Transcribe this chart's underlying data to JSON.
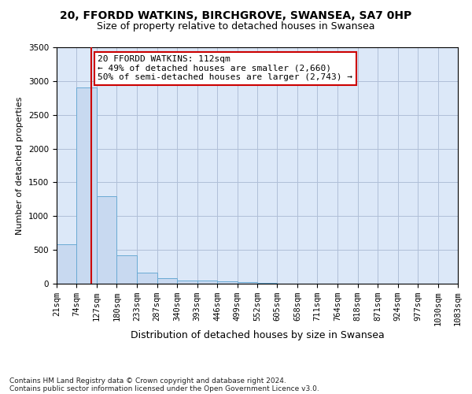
{
  "title1": "20, FFORDD WATKINS, BIRCHGROVE, SWANSEA, SA7 0HP",
  "title2": "Size of property relative to detached houses in Swansea",
  "xlabel": "Distribution of detached houses by size in Swansea",
  "ylabel": "Number of detached properties",
  "footnote1": "Contains HM Land Registry data © Crown copyright and database right 2024.",
  "footnote2": "Contains public sector information licensed under the Open Government Licence v3.0.",
  "annotation_line1": "20 FFORDD WATKINS: 112sqm",
  "annotation_line2": "← 49% of detached houses are smaller (2,660)",
  "annotation_line3": "50% of semi-detached houses are larger (2,743) →",
  "bar_edges": [
    21,
    74,
    127,
    180,
    233,
    287,
    340,
    393,
    446,
    499,
    552,
    605,
    658,
    711,
    764,
    818,
    871,
    924,
    977,
    1030,
    1083
  ],
  "bar_heights": [
    580,
    2900,
    1300,
    420,
    160,
    80,
    50,
    45,
    35,
    20,
    10,
    5,
    3,
    2,
    2,
    1,
    1,
    1,
    1,
    1
  ],
  "bar_color": "#c8d9f0",
  "bar_edge_color": "#6aaad4",
  "property_size": 112,
  "vline_color": "#cc0000",
  "ylim": [
    0,
    3500
  ],
  "xlim_min": 21,
  "xlim_max": 1083,
  "grid_color": "#b0bfd8",
  "background_color": "#dce8f8",
  "annotation_box_edge": "#cc0000",
  "annotation_box_face": "#ffffff",
  "title1_fontsize": 10,
  "title2_fontsize": 9,
  "xlabel_fontsize": 9,
  "ylabel_fontsize": 8,
  "tick_fontsize": 7.5,
  "annotation_fontsize": 8,
  "footnote_fontsize": 6.5
}
